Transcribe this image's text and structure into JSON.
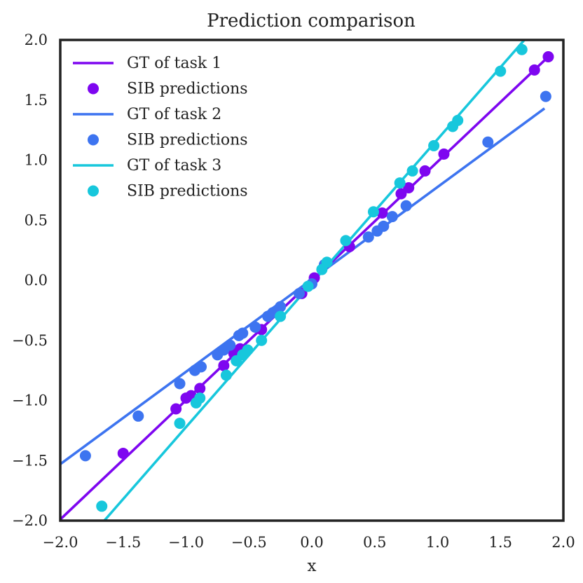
{
  "chart_data": {
    "type": "scatter",
    "title": "Prediction comparison",
    "xlabel": "x",
    "ylabel": "",
    "xlim": [
      -2.0,
      2.0
    ],
    "ylim": [
      -2.0,
      2.0
    ],
    "xticks": [
      "−2.0",
      "−1.5",
      "−1.0",
      "−0.5",
      "0.0",
      "0.5",
      "1.0",
      "1.5",
      "2.0"
    ],
    "yticks": [
      "2.0",
      "1.5",
      "1.0",
      "0.5",
      "0.0",
      "−0.5",
      "−1.0",
      "−1.5",
      "−2.0"
    ],
    "grid": false,
    "legend_position": "top-left",
    "series": [
      {
        "name": "GT of task 1",
        "kind": "line",
        "color": "#7e06f0",
        "x": [
          -2.0,
          1.88
        ],
        "y": [
          -1.99,
          1.86
        ]
      },
      {
        "name": "SIB predictions",
        "kind": "scatter",
        "color": "#7e06f0",
        "x": [
          -1.5,
          -1.08,
          -1.0,
          -0.96,
          -0.89,
          -0.7,
          -0.62,
          -0.57,
          -0.4,
          -0.08,
          0.02,
          0.3,
          0.56,
          0.71,
          0.77,
          0.9,
          1.05,
          1.77,
          1.88
        ],
        "y": [
          -1.44,
          -1.07,
          -0.98,
          -0.96,
          -0.9,
          -0.71,
          -0.61,
          -0.57,
          -0.41,
          -0.11,
          0.02,
          0.28,
          0.56,
          0.72,
          0.77,
          0.91,
          1.05,
          1.75,
          1.86
        ]
      },
      {
        "name": "GT of task 2",
        "kind": "line",
        "color": "#3d74f0",
        "x": [
          -2.0,
          1.85
        ],
        "y": [
          -1.53,
          1.43
        ]
      },
      {
        "name": "SIB predictions",
        "kind": "scatter",
        "color": "#3d74f0",
        "x": [
          -1.8,
          -1.38,
          -1.05,
          -0.93,
          -0.88,
          -0.75,
          -0.7,
          -0.65,
          -0.58,
          -0.55,
          -0.45,
          -0.35,
          -0.31,
          -0.25,
          -0.1,
          0.0,
          0.1,
          0.45,
          0.52,
          0.57,
          0.64,
          0.75,
          1.4,
          1.86
        ],
        "y": [
          -1.46,
          -1.13,
          -0.86,
          -0.75,
          -0.72,
          -0.62,
          -0.58,
          -0.54,
          -0.46,
          -0.44,
          -0.39,
          -0.3,
          -0.27,
          -0.22,
          -0.11,
          -0.03,
          0.13,
          0.36,
          0.41,
          0.45,
          0.53,
          0.62,
          1.15,
          1.53
        ]
      },
      {
        "name": "GT of task 3",
        "kind": "line",
        "color": "#17c7dc",
        "x": [
          -1.65,
          1.74
        ],
        "y": [
          -2.0,
          2.06
        ]
      },
      {
        "name": "SIB predictions",
        "kind": "scatter",
        "color": "#17c7dc",
        "x": [
          -1.67,
          -1.05,
          -0.92,
          -0.89,
          -0.68,
          -0.6,
          -0.55,
          -0.51,
          -0.4,
          -0.25,
          -0.03,
          0.08,
          0.12,
          0.27,
          0.49,
          0.7,
          0.8,
          0.97,
          1.12,
          1.16,
          1.5,
          1.67
        ],
        "y": [
          -1.88,
          -1.19,
          -1.02,
          -0.98,
          -0.79,
          -0.67,
          -0.62,
          -0.58,
          -0.5,
          -0.3,
          -0.05,
          0.09,
          0.15,
          0.33,
          0.57,
          0.81,
          0.91,
          1.12,
          1.28,
          1.33,
          1.74,
          1.92
        ]
      }
    ]
  }
}
